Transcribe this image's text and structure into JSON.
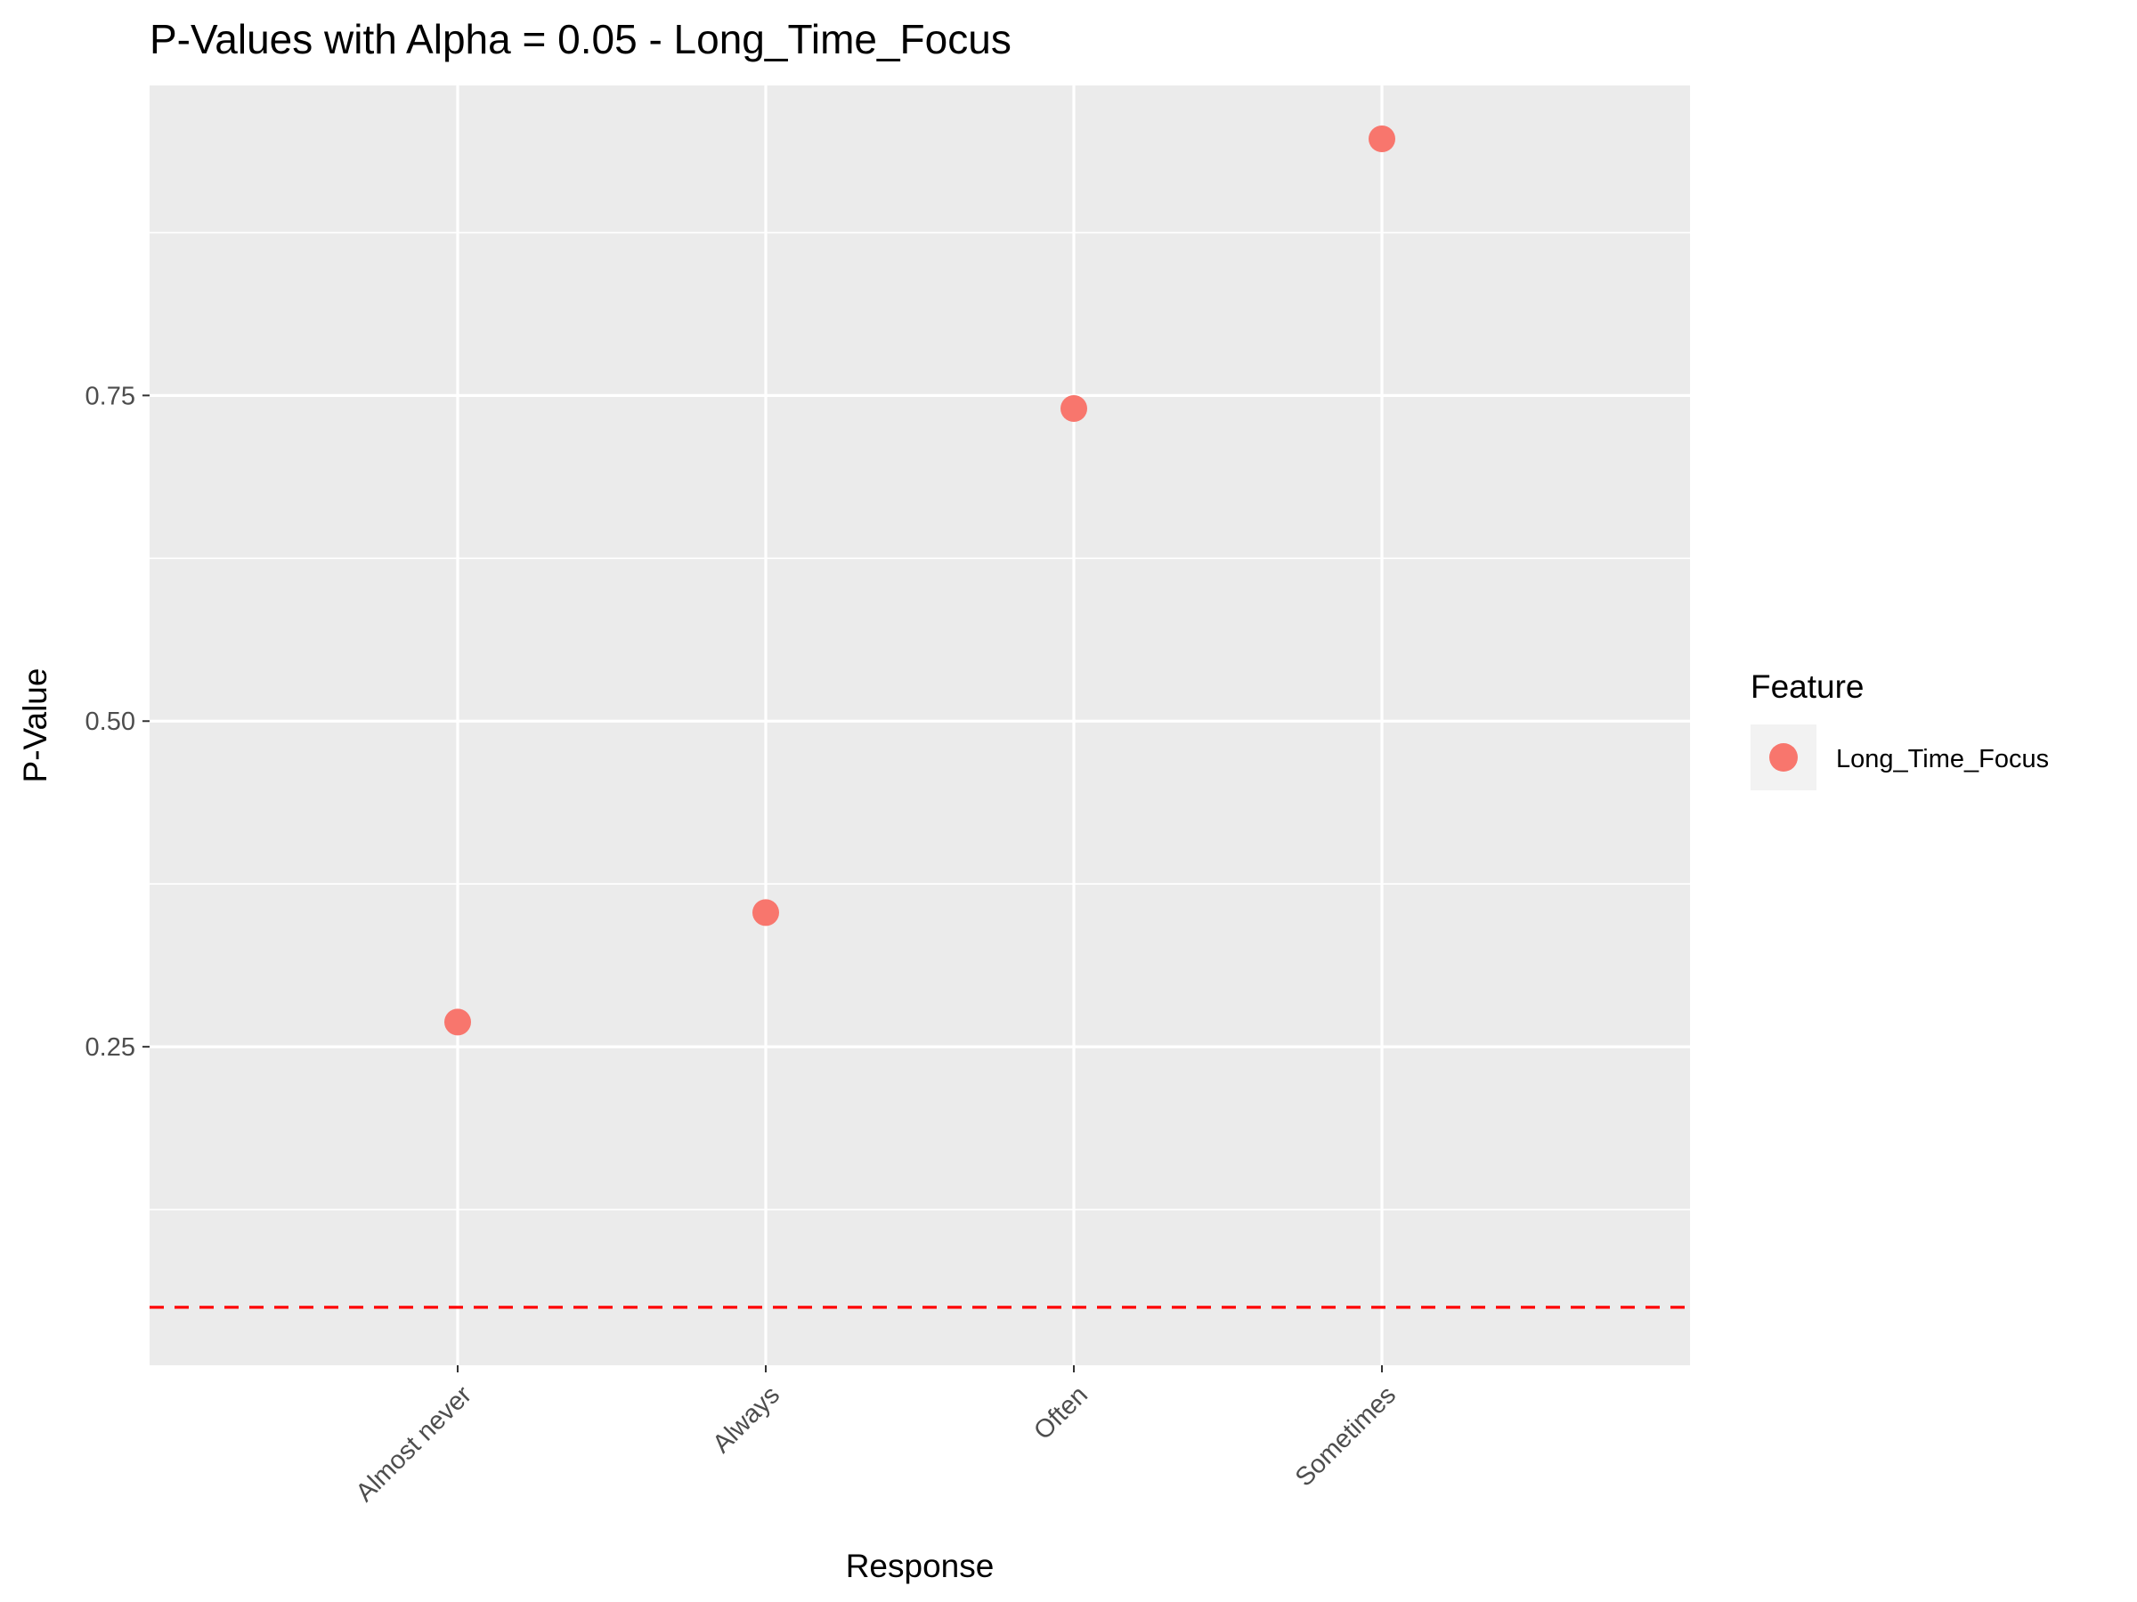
{
  "chart_data": {
    "type": "scatter",
    "title": "P-Values with Alpha = 0.05 - Long_Time_Focus",
    "xlabel": "Response",
    "ylabel": "P-Value",
    "categories": [
      "Almost never",
      "Always",
      "Often",
      "Sometimes"
    ],
    "series": [
      {
        "name": "Long_Time_Focus",
        "values": [
          0.269,
          0.353,
          0.74,
          0.947
        ]
      }
    ],
    "y_ticks": [
      0.25,
      0.5,
      0.75
    ],
    "y_tick_labels": [
      "0.25",
      "0.50",
      "0.75"
    ],
    "ylim": [
      0.0055,
      0.988
    ],
    "reference_line": {
      "y": 0.05,
      "color": "#ff0000",
      "style": "dashed"
    },
    "legend": {
      "title": "Feature",
      "placement": "right"
    },
    "grid": true,
    "point_color": "#f8766d",
    "panel_color": "#ebebeb"
  }
}
